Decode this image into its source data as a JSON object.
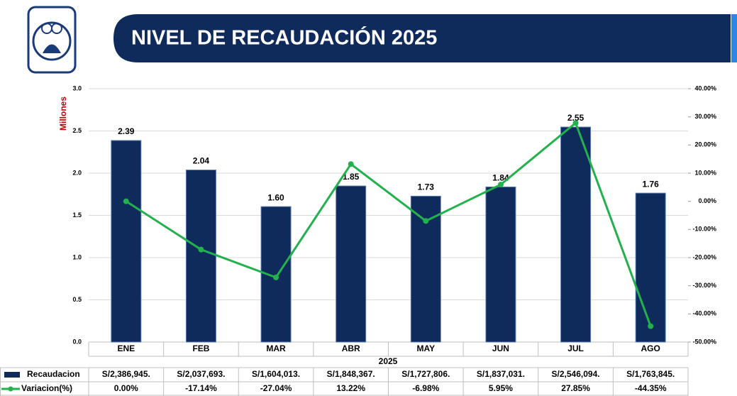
{
  "chart_data": {
    "type": "bar_line",
    "title": "NIVEL DE RECAUDACIÓN 2025",
    "ylabel": "Millones",
    "xlabel": "2025",
    "categories": [
      "ENE",
      "FEB",
      "MAR",
      "ABR",
      "MAY",
      "JUN",
      "JUL",
      "AGO"
    ],
    "series": [
      {
        "name": "Recaudacion",
        "color": "#0f2b5b",
        "type": "bar",
        "values": [
          2.386945,
          2.037693,
          1.604013,
          1.848367,
          1.727806,
          1.837031,
          2.546094,
          1.763845
        ],
        "value_labels": [
          "2.39",
          "2.04",
          "1.60",
          "1.85",
          "1.73",
          "1.84",
          "2.55",
          "1.76"
        ],
        "table_labels": [
          "S/2,386,945.",
          "S/2,037,693.",
          "S/1,604,013.",
          "S/1,848,367.",
          "S/1,727,806.",
          "S/1,837,031.",
          "S/2,546,094.",
          "S/1,763,845."
        ]
      },
      {
        "name": "Variacion(%)",
        "color": "#22b14c",
        "type": "line",
        "axis": "y2",
        "values": [
          0,
          -17.14,
          -27.04,
          13.22,
          -6.98,
          5.95,
          27.85,
          -44.35
        ],
        "table_labels": [
          "0.00%",
          "-17.14%",
          "-27.04%",
          "13.22%",
          "-6.98%",
          "5.95%",
          "27.85%",
          "-44.35%"
        ]
      }
    ],
    "ylim": [
      0,
      3
    ],
    "yticks": [
      {
        "value": 0,
        "label": "0.0"
      },
      {
        "value": 0.5,
        "label": "0.5"
      },
      {
        "value": 1,
        "label": "1.0"
      },
      {
        "value": 1.5,
        "label": "1.5"
      },
      {
        "value": 2,
        "label": "2.0"
      },
      {
        "value": 2.5,
        "label": "2.5"
      },
      {
        "value": 3,
        "label": "3.0"
      }
    ],
    "y2lim": [
      -50,
      40
    ],
    "y2ticks": [
      {
        "value": -50,
        "label": "-50.00%"
      },
      {
        "value": -40,
        "label": "-40.00%"
      },
      {
        "value": -30,
        "label": "-30.00%"
      },
      {
        "value": -20,
        "label": "-20.00%"
      },
      {
        "value": -10,
        "label": "-10.00%"
      },
      {
        "value": 0,
        "label": "0.00%"
      },
      {
        "value": 10,
        "label": "10.00%"
      },
      {
        "value": 20,
        "label": "20.00%"
      },
      {
        "value": 30,
        "label": "30.00%"
      },
      {
        "value": 40,
        "label": "40.00%"
      }
    ],
    "grid": true
  }
}
